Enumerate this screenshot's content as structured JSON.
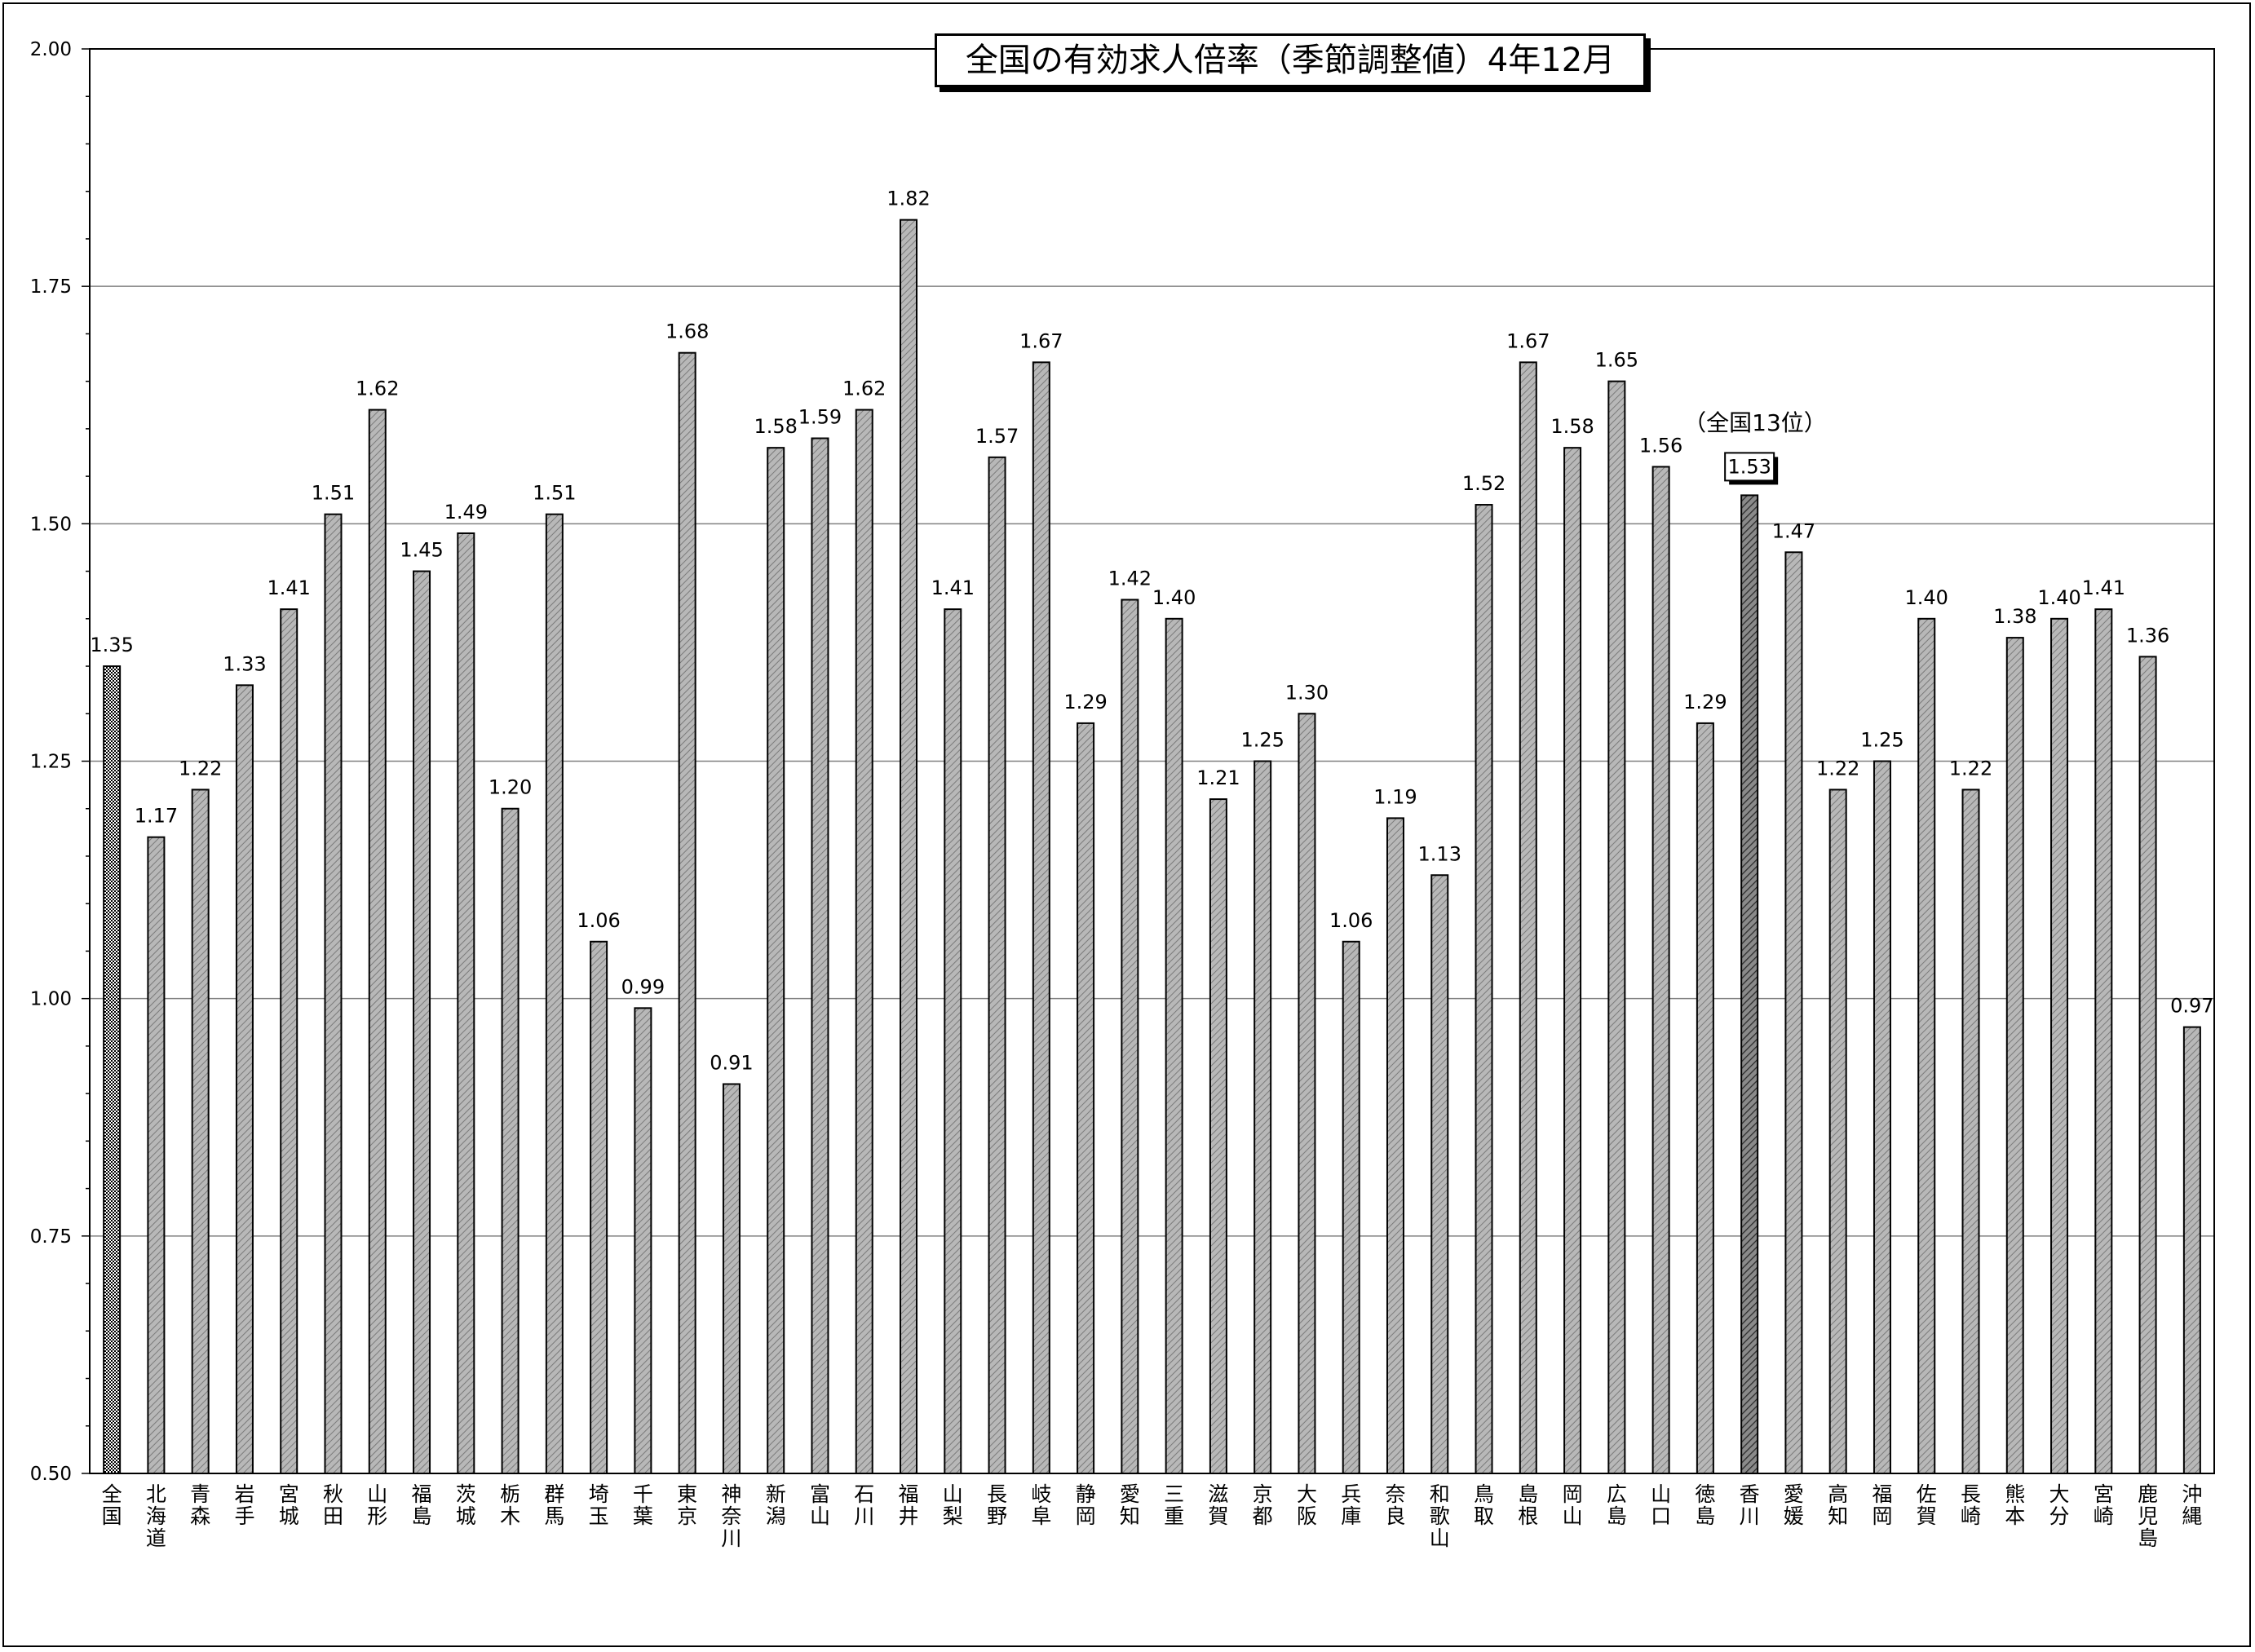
{
  "chart_data": {
    "type": "bar",
    "title": "全国の有効求人倍率（季節調整値）4年12月",
    "annotation": "（全国13位）",
    "highlight": "香川",
    "xlabel": "",
    "ylabel": "",
    "ylim": [
      0.5,
      2.0
    ],
    "yticks": [
      "2.00",
      "1.75",
      "1.50",
      "1.25",
      "1.00",
      "0.75",
      "0.50"
    ],
    "grid": true,
    "legend": "none",
    "colors": {
      "bar": "#b5b5b5",
      "national": "#ffffff",
      "highlight": "#808080",
      "grid": "#808080"
    },
    "categories": [
      "全国",
      "北海道",
      "青森",
      "岩手",
      "宮城",
      "秋田",
      "山形",
      "福島",
      "茨城",
      "栃木",
      "群馬",
      "埼玉",
      "千葉",
      "東京",
      "神奈川",
      "新潟",
      "富山",
      "石川",
      "福井",
      "山梨",
      "長野",
      "岐阜",
      "静岡",
      "愛知",
      "三重",
      "滋賀",
      "京都",
      "大阪",
      "兵庫",
      "奈良",
      "和歌山",
      "鳥取",
      "島根",
      "岡山",
      "広島",
      "山口",
      "徳島",
      "香川",
      "愛媛",
      "高知",
      "福岡",
      "佐賀",
      "長崎",
      "熊本",
      "大分",
      "宮崎",
      "鹿児島",
      "沖縄"
    ],
    "values": [
      1.35,
      1.17,
      1.22,
      1.33,
      1.41,
      1.51,
      1.62,
      1.45,
      1.49,
      1.2,
      1.51,
      1.06,
      0.99,
      1.68,
      0.91,
      1.58,
      1.59,
      1.62,
      1.82,
      1.41,
      1.57,
      1.67,
      1.29,
      1.42,
      1.4,
      1.21,
      1.25,
      1.3,
      1.06,
      1.19,
      1.13,
      1.52,
      1.67,
      1.58,
      1.65,
      1.56,
      1.29,
      1.53,
      1.47,
      1.22,
      1.25,
      1.4,
      1.22,
      1.38,
      1.4,
      1.41,
      1.36,
      0.97
    ]
  }
}
